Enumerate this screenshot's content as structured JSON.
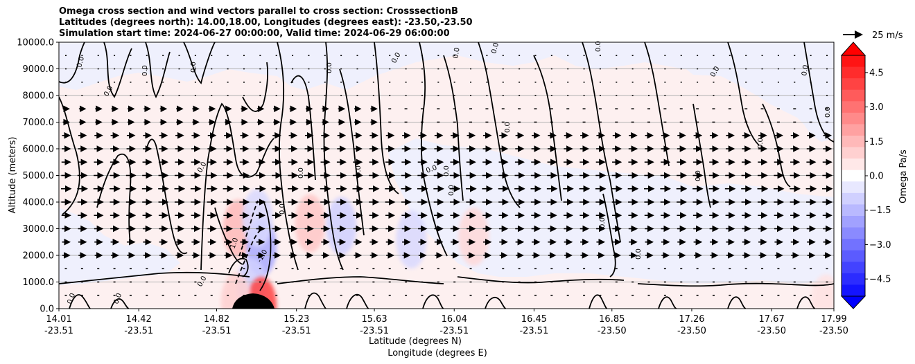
{
  "title_lines": [
    "Omega cross section and wind vectors parallel to cross section: CrosssectionB",
    "Latitudes (degrees north): 14.00,18.00, Longitudes (degrees east): -23.50,-23.50",
    "Simulation start time: 2024-06-27 00:00:00, Valid time: 2024-06-29 06:00:00"
  ],
  "quiver_key_label": "25 m/s",
  "colorbar_label": "Omega Pa/s",
  "colors": {
    "positive": "#ff0000",
    "negative": "#0000ff",
    "background_pos": "#fdf0f0",
    "background_neg": "#eff0fd",
    "grid": "#b0b0b0"
  },
  "chart_data": {
    "type": "contour",
    "ylabel": "Altitude (meters)",
    "xlabel_1": "Latitude (degrees N)",
    "xlabel_2": "Longitude (degrees E)",
    "ylim": [
      0,
      10000
    ],
    "yticks": [
      "0.0",
      "1000.0",
      "2000.0",
      "3000.0",
      "4000.0",
      "5000.0",
      "6000.0",
      "7000.0",
      "8000.0",
      "9000.0",
      "10000.0"
    ],
    "xlim": [
      14.01,
      17.99
    ],
    "xticks": [
      {
        "value": 14.01,
        "lat": "14.01",
        "lon": "-23.51"
      },
      {
        "value": 14.42,
        "lat": "14.42",
        "lon": "-23.51"
      },
      {
        "value": 14.82,
        "lat": "14.82",
        "lon": "-23.51"
      },
      {
        "value": 15.23,
        "lat": "15.23",
        "lon": "-23.51"
      },
      {
        "value": 15.63,
        "lat": "15.63",
        "lon": "-23.51"
      },
      {
        "value": 16.04,
        "lat": "16.04",
        "lon": "-23.51"
      },
      {
        "value": 16.45,
        "lat": "16.45",
        "lon": "-23.51"
      },
      {
        "value": 16.85,
        "lat": "16.85",
        "lon": "-23.50"
      },
      {
        "value": 17.26,
        "lat": "17.26",
        "lon": "-23.50"
      },
      {
        "value": 17.67,
        "lat": "17.67",
        "lon": "-23.50"
      },
      {
        "value": 17.99,
        "lat": "17.99",
        "lon": "-23.50"
      }
    ],
    "colorbar": {
      "range": [
        -5.25,
        5.25
      ],
      "ticks": [
        "4.5",
        "3.0",
        "1.5",
        "0.0",
        "−1.5",
        "−3.0",
        "−4.5"
      ],
      "tick_values": [
        4.5,
        3.0,
        1.5,
        0.0,
        -1.5,
        -3.0,
        -4.5
      ]
    },
    "contour_labels": [
      "0.0",
      "1.0",
      "-1.0",
      "1.0",
      "2.0"
    ],
    "vector_rows": [
      500,
      1000,
      1500,
      2000,
      2500,
      3000,
      3500,
      4000,
      4500,
      5000,
      5500,
      6000,
      6500,
      7000,
      7500,
      8000,
      8500,
      9000,
      9500
    ],
    "anomalies": [
      {
        "x": 14.93,
        "y": 3000,
        "omega": 1.5
      },
      {
        "x": 15.05,
        "y": 2300,
        "omega": -1.8
      },
      {
        "x": 15.03,
        "y": 3400,
        "omega": -0.8
      },
      {
        "x": 15.3,
        "y": 3200,
        "omega": 1.2
      },
      {
        "x": 15.46,
        "y": 3100,
        "omega": -1.0
      },
      {
        "x": 15.82,
        "y": 2600,
        "omega": -0.8
      },
      {
        "x": 16.14,
        "y": 2700,
        "omega": 0.8
      },
      {
        "x": 15.0,
        "y": 800,
        "omega": -1.0
      },
      {
        "x": 15.05,
        "y": 100,
        "omega": 4.0
      },
      {
        "x": 14.92,
        "y": 250,
        "omega": 1.0
      },
      {
        "x": 17.95,
        "y": 200,
        "omega": 0.6
      }
    ]
  }
}
